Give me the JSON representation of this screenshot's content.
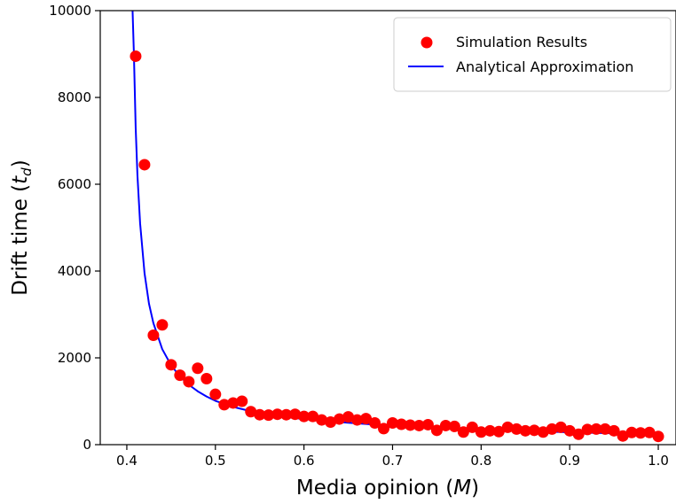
{
  "chart_data": {
    "type": "scatter",
    "xlabel": "Media opinion",
    "xlabel_symbol": "M",
    "ylabel": "Drift time",
    "ylabel_symbol": "t",
    "ylabel_subscript": "d",
    "xlim": [
      0.37,
      1.02
    ],
    "ylim": [
      0,
      10000
    ],
    "xticks": [
      0.4,
      0.5,
      0.6,
      0.7,
      0.8,
      0.9,
      1.0
    ],
    "xtick_labels": [
      "0.4",
      "0.5",
      "0.6",
      "0.7",
      "0.8",
      "0.9",
      "1.0"
    ],
    "yticks": [
      0,
      2000,
      4000,
      6000,
      8000,
      10000
    ],
    "ytick_labels": [
      "0",
      "2000",
      "4000",
      "6000",
      "8000",
      "10000"
    ],
    "grid": false,
    "legend_position": "top-right",
    "series": [
      {
        "name": "Simulation Results",
        "kind": "scatter",
        "color": "#ff0000",
        "points": [
          [
            0.41,
            8950
          ],
          [
            0.42,
            6450
          ],
          [
            0.43,
            2520
          ],
          [
            0.44,
            2760
          ],
          [
            0.45,
            1840
          ],
          [
            0.46,
            1600
          ],
          [
            0.47,
            1450
          ],
          [
            0.48,
            1760
          ],
          [
            0.49,
            1520
          ],
          [
            0.5,
            1160
          ],
          [
            0.51,
            920
          ],
          [
            0.52,
            960
          ],
          [
            0.53,
            1000
          ],
          [
            0.54,
            760
          ],
          [
            0.55,
            690
          ],
          [
            0.56,
            680
          ],
          [
            0.57,
            700
          ],
          [
            0.58,
            690
          ],
          [
            0.59,
            700
          ],
          [
            0.6,
            650
          ],
          [
            0.61,
            650
          ],
          [
            0.62,
            570
          ],
          [
            0.63,
            520
          ],
          [
            0.64,
            590
          ],
          [
            0.65,
            640
          ],
          [
            0.66,
            570
          ],
          [
            0.67,
            600
          ],
          [
            0.68,
            500
          ],
          [
            0.69,
            370
          ],
          [
            0.7,
            500
          ],
          [
            0.71,
            470
          ],
          [
            0.72,
            450
          ],
          [
            0.73,
            440
          ],
          [
            0.74,
            460
          ],
          [
            0.75,
            330
          ],
          [
            0.76,
            440
          ],
          [
            0.77,
            420
          ],
          [
            0.78,
            290
          ],
          [
            0.79,
            400
          ],
          [
            0.8,
            290
          ],
          [
            0.81,
            320
          ],
          [
            0.82,
            300
          ],
          [
            0.83,
            400
          ],
          [
            0.84,
            360
          ],
          [
            0.85,
            320
          ],
          [
            0.86,
            330
          ],
          [
            0.87,
            290
          ],
          [
            0.88,
            360
          ],
          [
            0.89,
            400
          ],
          [
            0.9,
            320
          ],
          [
            0.91,
            240
          ],
          [
            0.92,
            350
          ],
          [
            0.93,
            360
          ],
          [
            0.94,
            360
          ],
          [
            0.95,
            320
          ],
          [
            0.96,
            200
          ],
          [
            0.97,
            280
          ],
          [
            0.98,
            270
          ],
          [
            0.99,
            280
          ],
          [
            1.0,
            190
          ]
        ]
      },
      {
        "name": "Analytical Approximation",
        "kind": "line",
        "color": "#0000ff",
        "points": [
          [
            0.4065,
            10000
          ],
          [
            0.408,
            9000
          ],
          [
            0.41,
            7300
          ],
          [
            0.412,
            6200
          ],
          [
            0.415,
            5100
          ],
          [
            0.42,
            3950
          ],
          [
            0.425,
            3250
          ],
          [
            0.43,
            2800
          ],
          [
            0.44,
            2200
          ],
          [
            0.45,
            1830
          ],
          [
            0.46,
            1570
          ],
          [
            0.47,
            1380
          ],
          [
            0.48,
            1230
          ],
          [
            0.49,
            1110
          ],
          [
            0.5,
            1010
          ],
          [
            0.52,
            870
          ],
          [
            0.54,
            770
          ],
          [
            0.56,
            695
          ],
          [
            0.58,
            635
          ],
          [
            0.6,
            590
          ],
          [
            0.625,
            545
          ],
          [
            0.65,
            505
          ],
          [
            0.675,
            470
          ],
          [
            0.7,
            440
          ],
          [
            0.75,
            390
          ],
          [
            0.8,
            350
          ],
          [
            0.85,
            315
          ],
          [
            0.9,
            285
          ],
          [
            0.95,
            260
          ],
          [
            1.0,
            240
          ]
        ]
      }
    ]
  }
}
